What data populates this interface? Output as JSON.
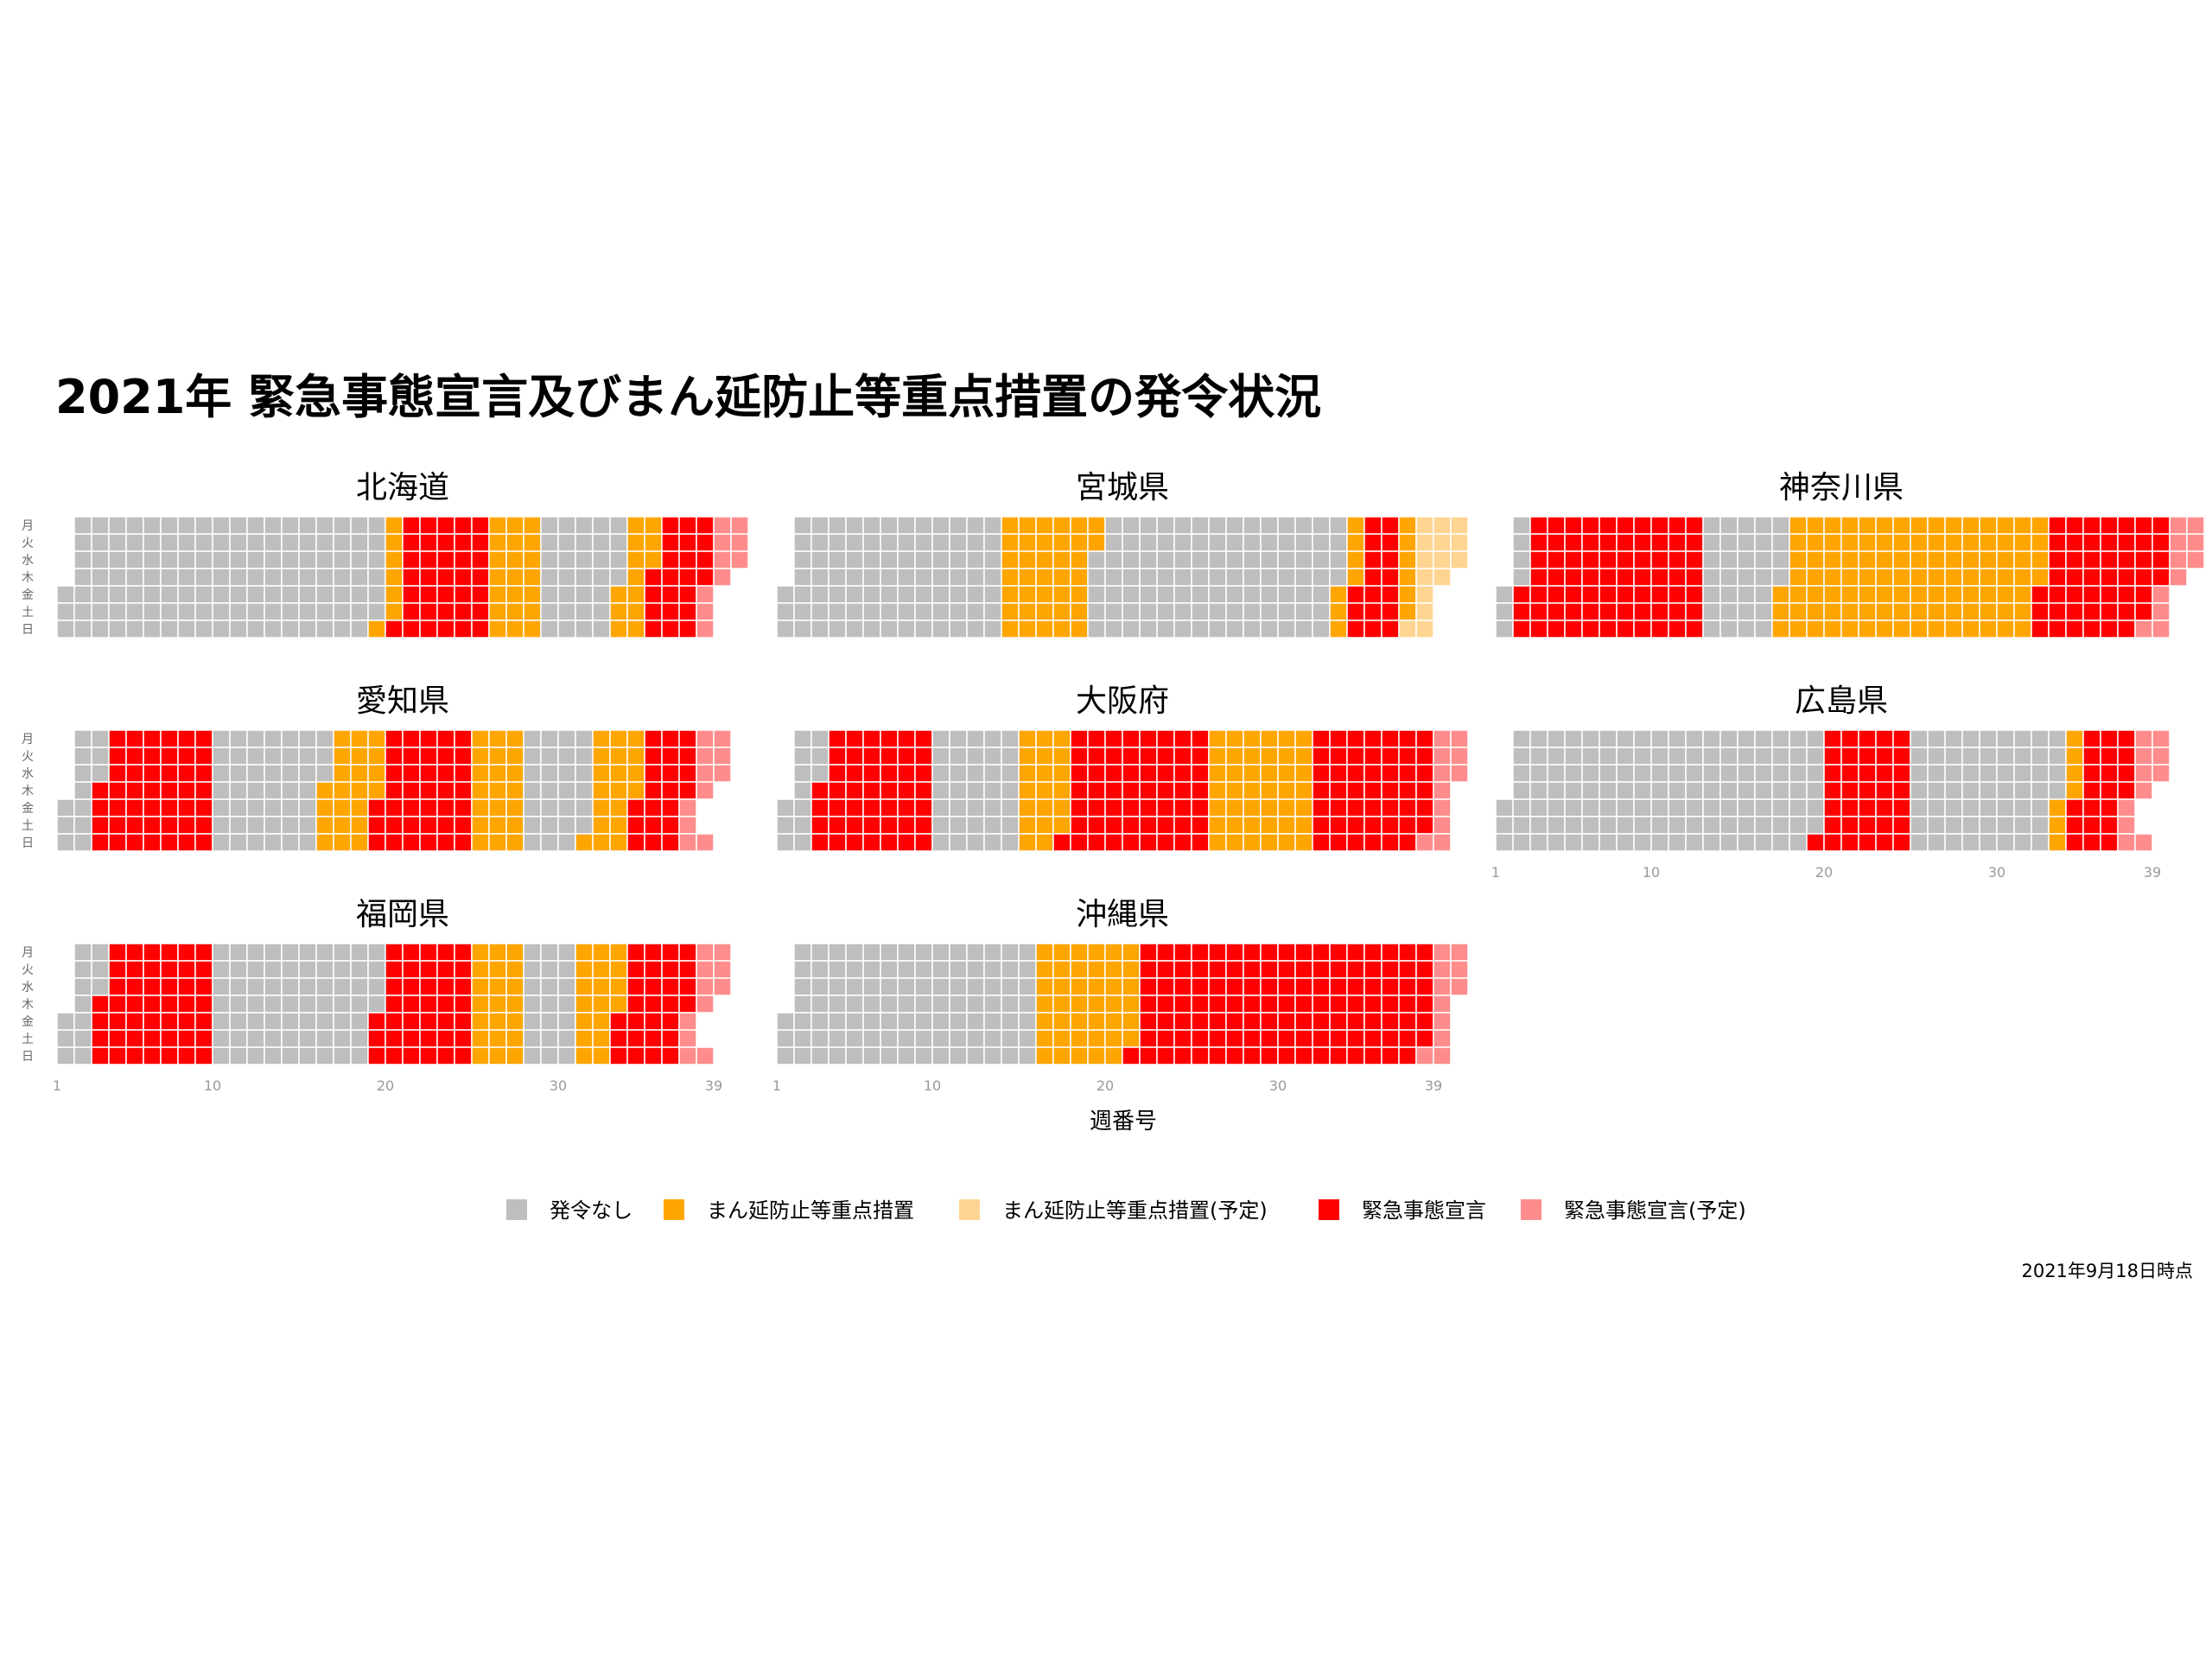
{
  "chart_data": {
    "type": "heatmap",
    "title": "2021年 緊急事態宣言及びまん延防止等重点措置の発令状況",
    "xlabel": "週番号",
    "ylabel": "",
    "x_ticks": [
      1,
      10,
      20,
      30,
      39
    ],
    "weekdays": [
      "月",
      "火",
      "水",
      "木",
      "金",
      "土",
      "日"
    ],
    "legend_position": "bottom",
    "note": "2021年9月18日時点",
    "categories": [
      {
        "key": "N",
        "label": "発令なし",
        "color": "#bebebe"
      },
      {
        "key": "M",
        "label": "まん延防止等重点措置",
        "color": "#ffa500"
      },
      {
        "key": "m",
        "label": "まん延防止等重点措置(予定)",
        "color": "#ffd591"
      },
      {
        "key": "E",
        "label": "緊急事態宣言",
        "color": "#ff0000"
      },
      {
        "key": "e",
        "label": "緊急事態宣言(予定)",
        "color": "#ff8c8c"
      }
    ],
    "encoding": "Each panel lists 7 strings (Mon..Sun); character i is the status of week i+1; '.' means no cell",
    "panels": [
      {
        "name": "北海道",
        "rows": [
          ".NNNNNNNNNNNNNNNNNNMEEEEEMMMNNNNNMMEEEee",
          ".NNNNNNNNNNNNNNNNNNMEEEEEMMMNNNNNMMEEEee",
          ".NNNNNNNNNNNNNNNNNNMEEEEEMMMNNNNNMMEEEee",
          ".NNNNNNNNNNNNNNNNNNMEEEEEMMMNNNNNMEEEEe.",
          "NNNNNNNNNNNNNNNNNNNMEEEEEMMMNNNNMMEEEe..",
          "NNNNNNNNNNNNNNNNNNNMEEEEEMMMNNNNMMEEEe..",
          "NNNNNNNNNNNNNNNNNNMEEEEEEMMMNNNNMMEEEe.."
        ]
      },
      {
        "name": "宮城県",
        "rows": [
          ".NNNNNNNNNNNNMMMMMMNNNNNNNNNNNNNNMEEMmmm",
          ".NNNNNNNNNNNNMMMMMMNNNNNNNNNNNNNNMEEMmmm",
          ".NNNNNNNNNNNNMMMMMNNNNNNNNNNNNNNNMEEMmmm",
          ".NNNNNNNNNNNNMMMMMNNNNNNNNNNNNNNNMEEMmm.",
          "NNNNNNNNNNNNNMMMMMNNNNNNNNNNNNNNMEEEMm..",
          "NNNNNNNNNNNNNMMMMMNNNNNNNNNNNNNNMEEEMm..",
          "NNNNNNNNNNNNNMMMMMNNNNNNNNNNNNNNMEEEmm.."
        ]
      },
      {
        "name": "神奈川県",
        "rows": [
          ".NEEEEEEEEEENNNNNMMMMMMMMMMMMMMMEEEEEEEee",
          ".NEEEEEEEEEENNNNNMMMMMMMMMMMMMMMEEEEEEEee",
          ".NEEEEEEEEEENNNNNMMMMMMMMMMMMMMMEEEEEEEee",
          ".NEEEEEEEEEENNNNNMMMMMMMMMMMMMMMEEEEEEEe.",
          "NEEEEEEEEEEENNNNMMMMMMMMMMMMMMMEEEEEEEe..",
          "NEEEEEEEEEEENNNNMMMMMMMMMMMMMMMEEEEEEEe..",
          "NEEEEEEEEEEENNNNMMMMMMMMMMMMMMMEEEEEEee.."
        ]
      },
      {
        "name": "愛知県",
        "rows": [
          ".NNEEEEEENNNNNNNMMMEEEEEMMMNNNNMMMEEEee",
          ".NNEEEEEENNNNNNNMMMEEEEEMMMNNNNMMMEEEee",
          ".NNEEEEEENNNNNNNMMMEEEEEMMMNNNNMMMEEEee",
          ".NEEEEEEENNNNNNMMMMEEEEEMMMNNNNMMMEEEe.",
          "NNEEEEEEENNNNNNMMMEEEEEEMMMNNNNMMEEEe..",
          "NNEEEEEEENNNNNNMMMEEEEEEMMMNNNNMMEEEe..",
          "NNEEEEEEENNNNNNMMMEEEEEEMMMNNNMMMEEEee."
        ]
      },
      {
        "name": "大阪府",
        "rows": [
          ".NNEEEEEENNNNNMMMEEEEEEEEMMMMMMEEEEEEEee",
          ".NNEEEEEENNNNNMMMEEEEEEEEMMMMMMEEEEEEEee",
          ".NNEEEEEENNNNNMMMEEEEEEEEMMMMMMEEEEEEEee",
          ".NEEEEEEENNNNNMMMEEEEEEEEMMMMMMEEEEEEEe.",
          "NNEEEEEEENNNNNMMMEEEEEEEEMMMMMMEEEEEEEe.",
          "NNEEEEEEENNNNNMMMEEEEEEEEMMMMMMEEEEEEEe.",
          "NNEEEEEEENNNNNMMEEEEEEEEEMMMMMMEEEEEEee."
        ]
      },
      {
        "name": "広島県",
        "rows": [
          ".NNNNNNNNNNNNNNNNNNEEEEENNNNNNNNNMEEEee",
          ".NNNNNNNNNNNNNNNNNNEEEEENNNNNNNNNMEEEee",
          ".NNNNNNNNNNNNNNNNNNEEEEENNNNNNNNNMEEEee",
          ".NNNNNNNNNNNNNNNNNNEEEEENNNNNNNNNMEEEe.",
          "NNNNNNNNNNNNNNNNNNNEEEEENNNNNNNNMEEEe..",
          "NNNNNNNNNNNNNNNNNNNEEEEENNNNNNNNMEEEe..",
          "NNNNNNNNNNNNNNNNNNEEEEEENNNNNNNNMEEEee."
        ]
      },
      {
        "name": "福岡県",
        "rows": [
          ".NNEEEEEENNNNNNNNNNEEEEEMMMNNNMMMEEEEee",
          ".NNEEEEEENNNNNNNNNNEEEEEMMMNNNMMMEEEEee",
          ".NNEEEEEENNNNNNNNNNEEEEEMMMNNNMMMEEEEee",
          ".NEEEEEEENNNNNNNNNNEEEEEMMMNNNMMMEEEEe.",
          "NNEEEEEEENNNNNNNNNEEEEEEMMMNNNMMEEEEe..",
          "NNEEEEEEENNNNNNNNNEEEEEEMMMNNNMMEEEEe..",
          "NNEEEEEEENNNNNNNNNEEEEEEMMMNNNMMEEEEee."
        ]
      },
      {
        "name": "沖縄県",
        "rows": [
          ".NNNNNNNNNNNNNNMMMMMMEEEEEEEEEEEEEEEEEee",
          ".NNNNNNNNNNNNNNMMMMMMEEEEEEEEEEEEEEEEEee",
          ".NNNNNNNNNNNNNNMMMMMMEEEEEEEEEEEEEEEEEee",
          ".NNNNNNNNNNNNNNMMMMMMEEEEEEEEEEEEEEEEEe.",
          "NNNNNNNNNNNNNNNMMMMMMEEEEEEEEEEEEEEEEEe.",
          "NNNNNNNNNNNNNNNMMMMMMEEEEEEEEEEEEEEEEEe.",
          "NNNNNNNNNNNNNNNMMMMMEEEEEEEEEEEEEEEEEee."
        ]
      }
    ]
  }
}
